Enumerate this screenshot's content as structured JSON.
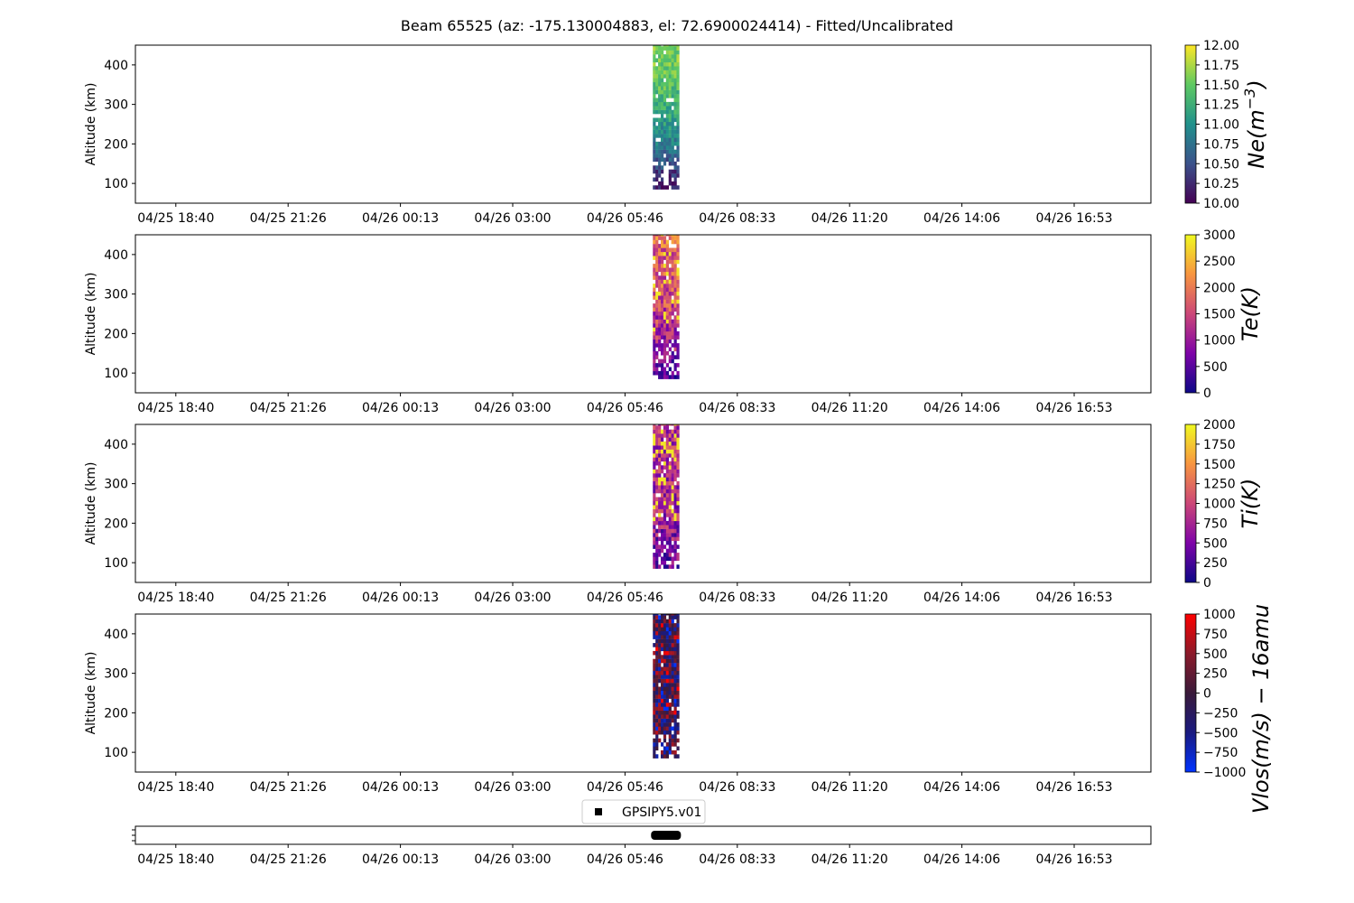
{
  "title": "Beam 65525 (az: -175.130004883, el: 72.6900024414) - Fitted/Uncalibrated",
  "chart_data": {
    "type": "heatmap",
    "time_ticks": [
      "04/25 18:40",
      "04/25 21:26",
      "04/26 00:13",
      "04/26 03:00",
      "04/26 05:46",
      "04/26 08:33",
      "04/26 11:20",
      "04/26 14:06",
      "04/26 16:53"
    ],
    "time_range_hours": [
      -1.0,
      24.12
    ],
    "data_time_range_hours": [
      11.8,
      12.45
    ],
    "altitude_ticks": [
      100,
      200,
      300,
      400
    ],
    "altitude_range_km": [
      50,
      450
    ],
    "data_altitude_range_km": [
      85,
      450
    ],
    "ylabel": "Altitude (km)",
    "panels": [
      {
        "parameter": "Ne",
        "colorbar_label": "Ne(m^-3)",
        "colorbar_label_sup": "−3",
        "vmin": 10.0,
        "vmax": 12.0,
        "colorbar_ticks": [
          "10.00",
          "10.25",
          "10.50",
          "10.75",
          "11.00",
          "11.25",
          "11.50",
          "11.75",
          "12.00"
        ],
        "colormap": "viridis",
        "colormap_stops": [
          "#440154",
          "#3b528b",
          "#21918c",
          "#5ec962",
          "#fde725"
        ],
        "profile": [
          [
            100,
            10.15
          ],
          [
            150,
            10.55
          ],
          [
            200,
            10.85
          ],
          [
            250,
            11.1
          ],
          [
            300,
            11.3
          ],
          [
            350,
            11.45
          ],
          [
            400,
            11.55
          ],
          [
            450,
            11.6
          ]
        ]
      },
      {
        "parameter": "Te",
        "colorbar_label": "Te(K)",
        "vmin": 0,
        "vmax": 3000,
        "colorbar_ticks": [
          "0",
          "500",
          "1000",
          "1500",
          "2000",
          "2500",
          "3000"
        ],
        "colormap": "plasma",
        "colormap_stops": [
          "#0d0887",
          "#7e03a8",
          "#cc4778",
          "#f89540",
          "#f0f921"
        ],
        "profile": [
          [
            100,
            600
          ],
          [
            150,
            900
          ],
          [
            200,
            1200
          ],
          [
            250,
            1400
          ],
          [
            300,
            1600
          ],
          [
            350,
            1700
          ],
          [
            400,
            1800
          ],
          [
            450,
            1900
          ]
        ]
      },
      {
        "parameter": "Ti",
        "colorbar_label": "Ti(K)",
        "vmin": 0,
        "vmax": 2000,
        "colorbar_ticks": [
          "0",
          "250",
          "500",
          "750",
          "1000",
          "1250",
          "1500",
          "1750",
          "2000"
        ],
        "colormap": "plasma",
        "colormap_stops": [
          "#0d0887",
          "#7e03a8",
          "#cc4778",
          "#f89540",
          "#f0f921"
        ],
        "profile": [
          [
            100,
            450
          ],
          [
            150,
            600
          ],
          [
            200,
            700
          ],
          [
            250,
            750
          ],
          [
            300,
            780
          ],
          [
            350,
            800
          ],
          [
            400,
            820
          ],
          [
            450,
            840
          ]
        ]
      },
      {
        "parameter": "Vlos",
        "colorbar_label": "Vlos(m/s) − 16amu",
        "vmin": -1000,
        "vmax": 1000,
        "colorbar_ticks": [
          "−1000",
          "−750",
          "−500",
          "−250",
          "0",
          "250",
          "500",
          "750",
          "1000"
        ],
        "colormap": "blue-red",
        "colormap_stops": [
          "#0033ff",
          "#1a1a80",
          "#3a1a3a",
          "#8b1a2a",
          "#ff0000"
        ],
        "profile": [
          [
            100,
            0
          ],
          [
            200,
            0
          ],
          [
            300,
            0
          ],
          [
            400,
            0
          ],
          [
            450,
            0
          ]
        ]
      }
    ],
    "legend": {
      "label": "GPSIPY5.v01",
      "placement": "upper-center"
    }
  }
}
